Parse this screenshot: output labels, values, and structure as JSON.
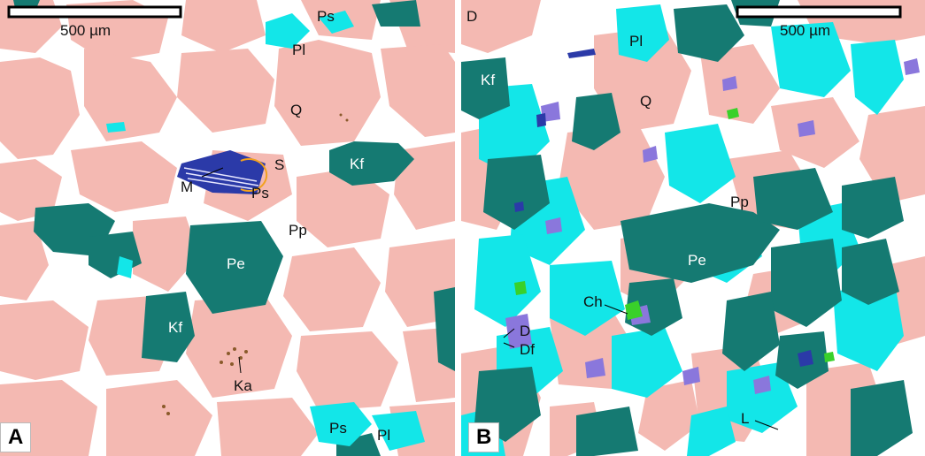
{
  "colors": {
    "quartz": "#f4b9b2",
    "k_feldspar": "#157a72",
    "plagioclase": "#13e6e8",
    "pore": "#ffffff",
    "mica": "#2b3aa8",
    "dolomite": "#8a77dc",
    "chlorite": "#39d12a",
    "kaolinite": "#8a5a2b"
  },
  "panel_a": {
    "letter": "A",
    "scale_label": "500 µm",
    "labels": {
      "ps_top": "Ps",
      "pl_top": "Pl",
      "q": "Q",
      "s": "S",
      "kf_right": "Kf",
      "m": "M",
      "ps_mid": "Ps",
      "pp": "Pp",
      "pe": "Pe",
      "kf_left": "Kf",
      "ka": "Ka",
      "ps_bottom": "Ps",
      "pl_bottom": "Pl"
    }
  },
  "panel_b": {
    "letter": "B",
    "scale_label": "500 µm",
    "labels": {
      "d_top": "D",
      "pl": "Pl",
      "kf": "Kf",
      "q": "Q",
      "pp": "Pp",
      "pe": "Pe",
      "ch": "Ch",
      "d": "D",
      "df": "Df",
      "l": "L"
    }
  }
}
